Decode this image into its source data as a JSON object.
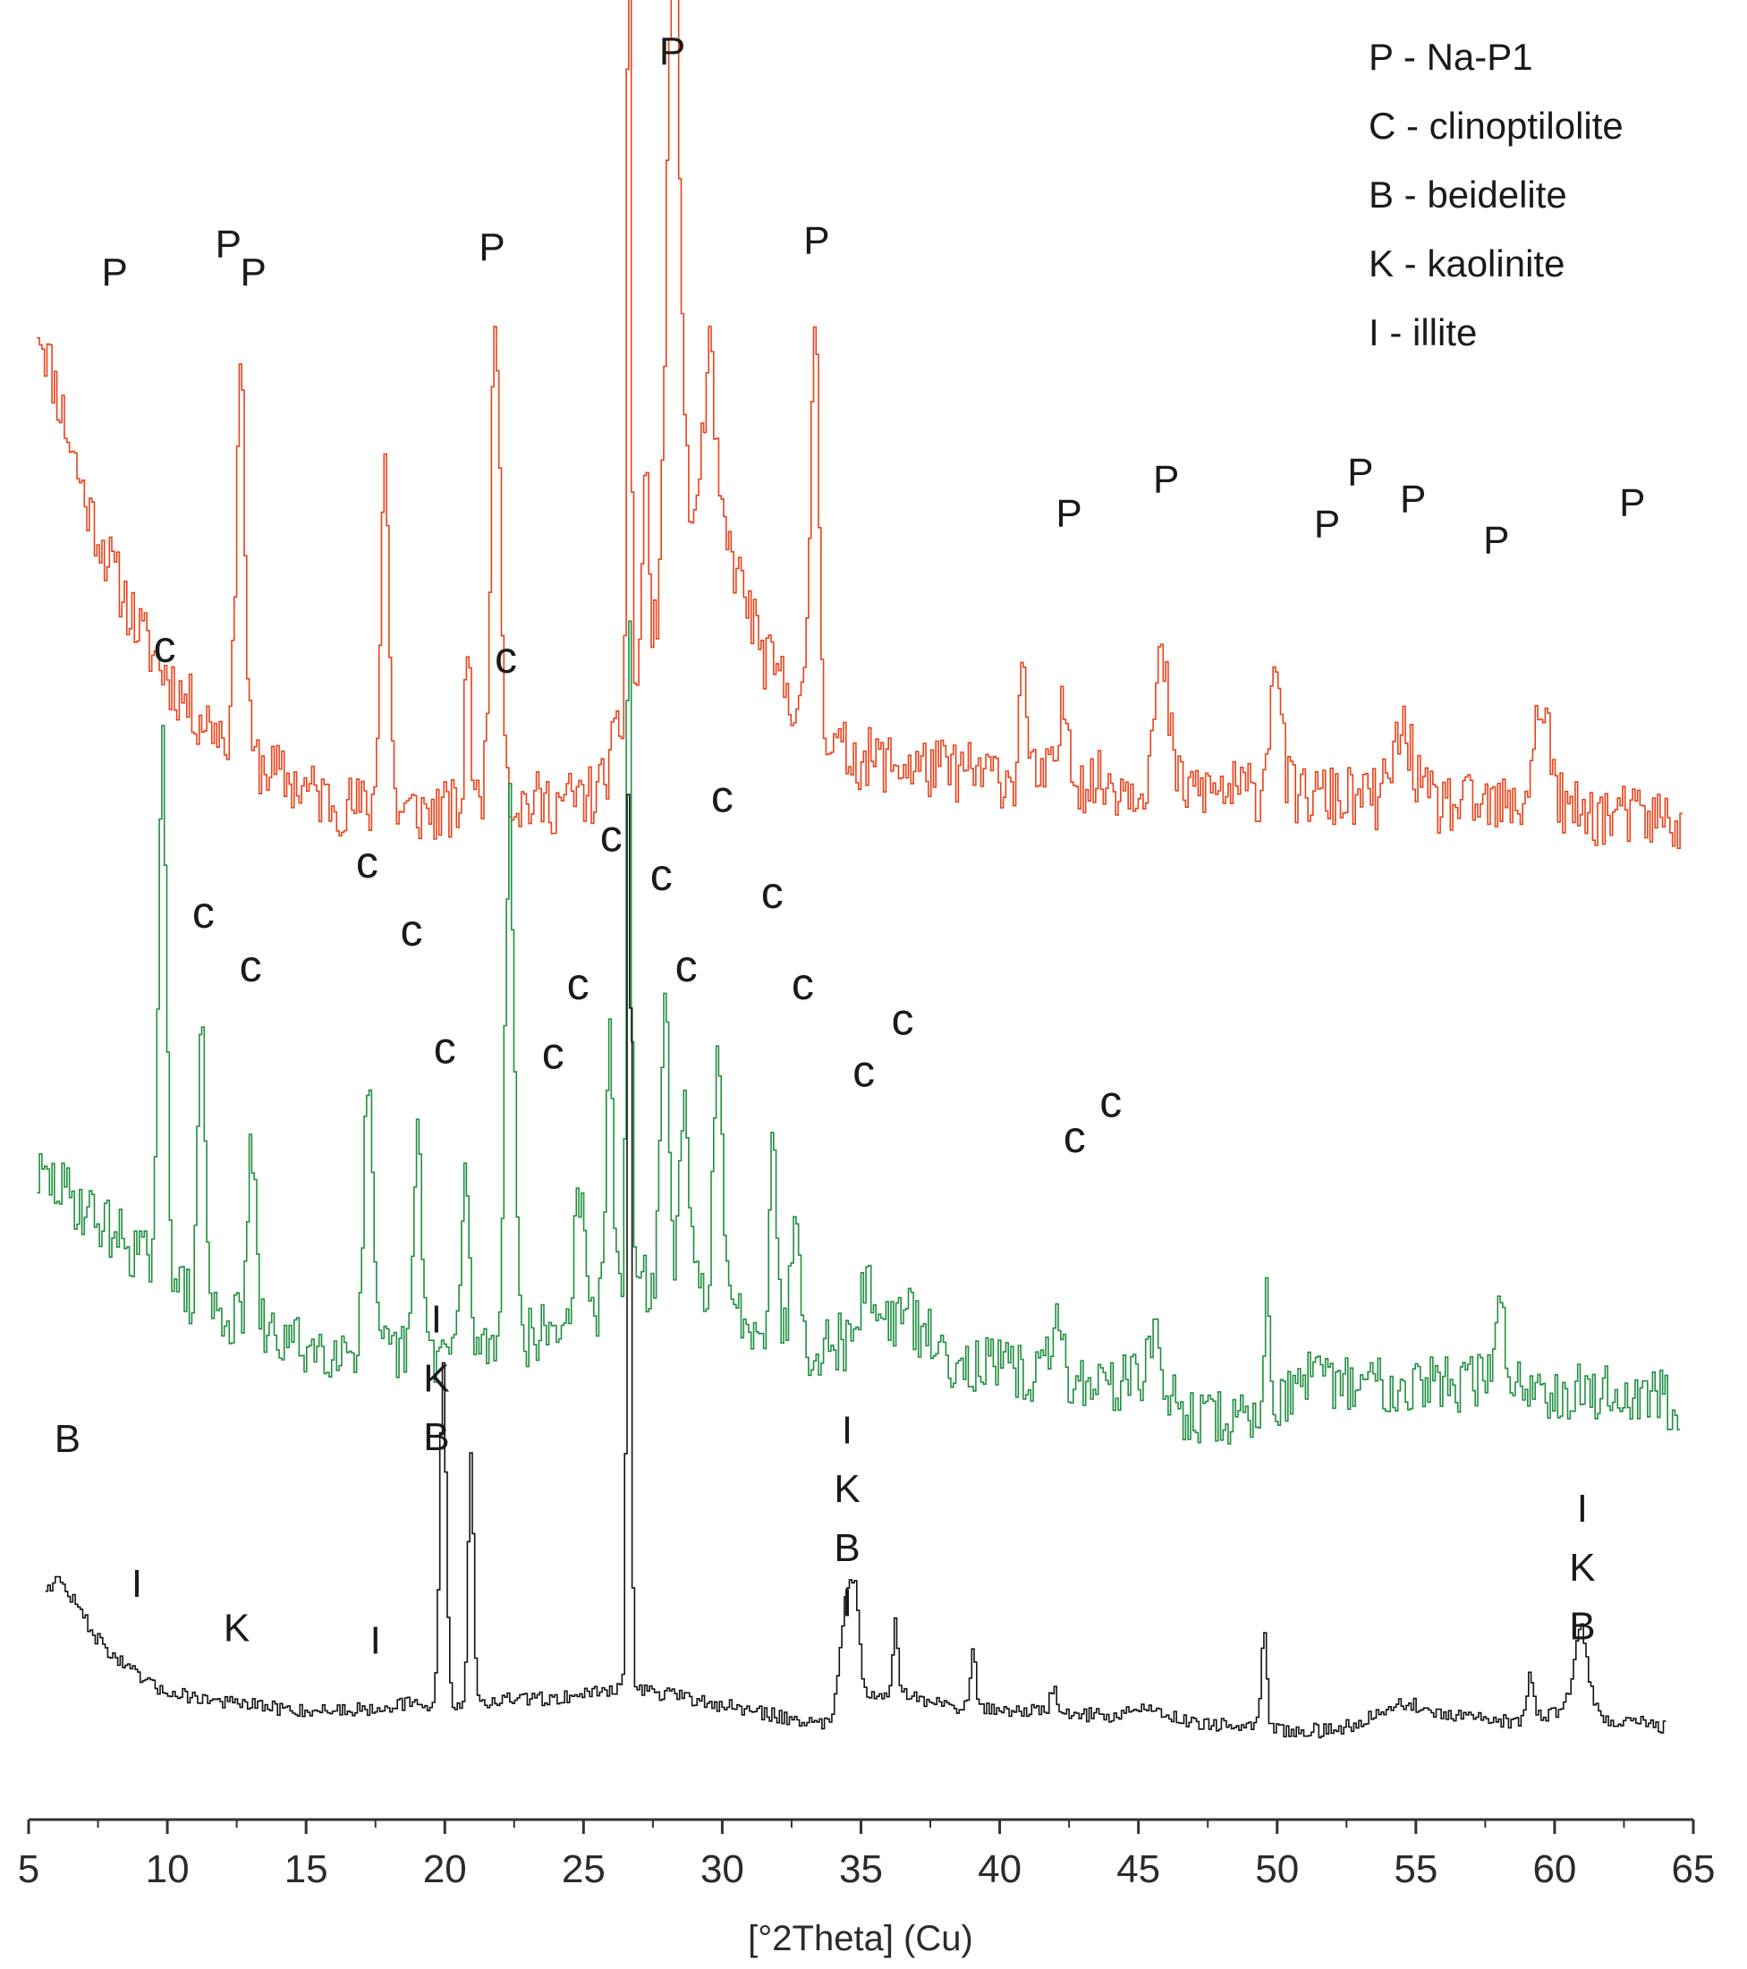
{
  "chart_data": {
    "type": "line",
    "title": "",
    "xlabel": "[°2Theta] (Cu)",
    "ylabel": "",
    "xlim": [
      5,
      65
    ],
    "xticks": [
      "5",
      "10",
      "15",
      "20",
      "25",
      "30",
      "35",
      "40",
      "45",
      "50",
      "55",
      "60",
      "65"
    ],
    "legend": {
      "placement": "top-right",
      "entries": [
        "P - Na-P1",
        "C - clinoptilolite",
        "B - beidelite",
        "K - kaolinite",
        "I - illite"
      ]
    },
    "colors": {
      "top": "#e8421a",
      "middle": "#1f8f3f",
      "bottom": "#111111",
      "axis": "#333333"
    },
    "series": [
      {
        "color": "#e8421a",
        "background": [
          [
            5.3,
            0.84
          ],
          [
            6,
            0.8
          ],
          [
            7,
            0.74
          ],
          [
            8,
            0.7
          ],
          [
            9,
            0.665
          ],
          [
            10,
            0.64
          ],
          [
            11,
            0.62
          ],
          [
            12,
            0.61
          ],
          [
            13,
            0.595
          ],
          [
            14,
            0.585
          ],
          [
            16,
            0.57
          ],
          [
            18,
            0.565
          ],
          [
            20,
            0.565
          ],
          [
            22,
            0.57
          ],
          [
            24,
            0.57
          ],
          [
            25.5,
            0.575
          ],
          [
            26.5,
            0.62
          ],
          [
            27.5,
            0.66
          ],
          [
            28.5,
            0.72
          ],
          [
            29.5,
            0.74
          ],
          [
            30.5,
            0.7
          ],
          [
            31.5,
            0.65
          ],
          [
            33,
            0.62
          ],
          [
            34,
            0.6
          ],
          [
            35,
            0.595
          ],
          [
            37,
            0.59
          ],
          [
            40,
            0.585
          ],
          [
            45,
            0.58
          ],
          [
            50,
            0.575
          ],
          [
            55,
            0.57
          ],
          [
            60,
            0.565
          ],
          [
            64.6,
            0.56
          ]
        ],
        "peaks": [
          [
            12.6,
            0.22,
            0.15
          ],
          [
            17.8,
            0.2,
            0.15
          ],
          [
            21.8,
            0.27,
            0.18
          ],
          [
            26.6,
            0.52,
            0.07
          ],
          [
            28.2,
            0.38,
            0.22
          ],
          [
            29.5,
            0.08,
            0.2
          ],
          [
            33.3,
            0.23,
            0.15
          ],
          [
            20.8,
            0.1,
            0.1
          ],
          [
            27.2,
            0.12,
            0.1
          ],
          [
            40.8,
            0.08,
            0.1
          ],
          [
            45.8,
            0.07,
            0.25
          ],
          [
            49.9,
            0.08,
            0.2
          ],
          [
            59.5,
            0.06,
            0.3
          ],
          [
            54.5,
            0.04,
            0.35
          ],
          [
            42.3,
            0.04,
            0.2
          ]
        ],
        "noise": 0.018,
        "seed": 11
      },
      {
        "color": "#1f8f3f",
        "background": [
          [
            5.3,
            0.36
          ],
          [
            6,
            0.355
          ],
          [
            8,
            0.33
          ],
          [
            9.5,
            0.31
          ],
          [
            11,
            0.29
          ],
          [
            13,
            0.275
          ],
          [
            15,
            0.265
          ],
          [
            17,
            0.265
          ],
          [
            19,
            0.26
          ],
          [
            21,
            0.265
          ],
          [
            23,
            0.27
          ],
          [
            25,
            0.28
          ],
          [
            27,
            0.3
          ],
          [
            29,
            0.3
          ],
          [
            31,
            0.28
          ],
          [
            33,
            0.265
          ],
          [
            35,
            0.27
          ],
          [
            36.5,
            0.285
          ],
          [
            38,
            0.26
          ],
          [
            42,
            0.245
          ],
          [
            45,
            0.245
          ],
          [
            47,
            0.225
          ],
          [
            49,
            0.225
          ],
          [
            51,
            0.245
          ],
          [
            55,
            0.245
          ],
          [
            58,
            0.245
          ],
          [
            61,
            0.24
          ],
          [
            64.5,
            0.235
          ]
        ],
        "peaks": [
          [
            9.8,
            0.3,
            0.14
          ],
          [
            11.2,
            0.17,
            0.12
          ],
          [
            13,
            0.1,
            0.15
          ],
          [
            17.2,
            0.15,
            0.15
          ],
          [
            19.0,
            0.12,
            0.15
          ],
          [
            20.7,
            0.09,
            0.15
          ],
          [
            22.3,
            0.3,
            0.16
          ],
          [
            24.8,
            0.07,
            0.18
          ],
          [
            25.9,
            0.17,
            0.12
          ],
          [
            26.6,
            0.42,
            0.08
          ],
          [
            27.9,
            0.16,
            0.15
          ],
          [
            28.6,
            0.1,
            0.15
          ],
          [
            29.8,
            0.14,
            0.15
          ],
          [
            31.8,
            0.12,
            0.12
          ],
          [
            32.6,
            0.08,
            0.15
          ],
          [
            35.2,
            0.03,
            0.25
          ],
          [
            49.6,
            0.06,
            0.12
          ],
          [
            58.0,
            0.04,
            0.2
          ],
          [
            42.0,
            0.03,
            0.25
          ],
          [
            45.5,
            0.03,
            0.25
          ]
        ],
        "noise": 0.017,
        "seed": 29
      },
      {
        "color": "#111111",
        "background": [
          [
            5.6,
            0.13
          ],
          [
            6,
            0.135
          ],
          [
            6.5,
            0.125
          ],
          [
            7.5,
            0.1
          ],
          [
            8.5,
            0.085
          ],
          [
            9.5,
            0.074
          ],
          [
            10.5,
            0.07
          ],
          [
            12,
            0.066
          ],
          [
            13.5,
            0.063
          ],
          [
            15,
            0.061
          ],
          [
            17,
            0.062
          ],
          [
            18.5,
            0.065
          ],
          [
            19.5,
            0.063
          ],
          [
            20.5,
            0.063
          ],
          [
            22,
            0.067
          ],
          [
            24,
            0.068
          ],
          [
            25.5,
            0.072
          ],
          [
            26.5,
            0.075
          ],
          [
            28,
            0.07
          ],
          [
            30,
            0.064
          ],
          [
            32,
            0.058
          ],
          [
            33.7,
            0.053
          ],
          [
            35,
            0.068
          ],
          [
            36.5,
            0.07
          ],
          [
            38,
            0.064
          ],
          [
            40,
            0.062
          ],
          [
            42,
            0.06
          ],
          [
            44,
            0.058
          ],
          [
            45.3,
            0.063
          ],
          [
            46.5,
            0.056
          ],
          [
            48,
            0.053
          ],
          [
            50,
            0.05
          ],
          [
            52,
            0.05
          ],
          [
            53,
            0.055
          ],
          [
            54,
            0.064
          ],
          [
            55,
            0.064
          ],
          [
            56,
            0.058
          ],
          [
            57.5,
            0.056
          ],
          [
            58.5,
            0.055
          ],
          [
            60,
            0.06
          ],
          [
            61,
            0.062
          ],
          [
            62,
            0.056
          ],
          [
            64,
            0.052
          ]
        ],
        "peaks": [
          [
            19.9,
            0.19,
            0.12
          ],
          [
            20.9,
            0.14,
            0.1
          ],
          [
            26.6,
            0.55,
            0.07
          ],
          [
            34.5,
            0.07,
            0.25
          ],
          [
            34.8,
            0.03,
            0.12
          ],
          [
            36.2,
            0.04,
            0.1
          ],
          [
            39.0,
            0.03,
            0.1
          ],
          [
            41.9,
            0.015,
            0.1
          ],
          [
            49.5,
            0.055,
            0.1
          ],
          [
            59.1,
            0.025,
            0.12
          ],
          [
            60.9,
            0.045,
            0.25
          ]
        ],
        "noise": 0.004,
        "seed": 47
      }
    ],
    "annotations": [
      {
        "text": "P",
        "x": 8.1,
        "y": 0.86,
        "kind": "P"
      },
      {
        "text": "P",
        "x": 13.1,
        "y": 0.86,
        "kind": "P"
      },
      {
        "text": "P",
        "x": 12.2,
        "y": 0.876,
        "kind": "P"
      },
      {
        "text": "P",
        "x": 21.7,
        "y": 0.874,
        "kind": "P"
      },
      {
        "text": "P",
        "x": 28.2,
        "y": 0.984,
        "kind": "P"
      },
      {
        "text": "P",
        "x": 33.4,
        "y": 0.878,
        "kind": "P"
      },
      {
        "text": "P",
        "x": 42.5,
        "y": 0.725,
        "kind": "P"
      },
      {
        "text": "P",
        "x": 46.0,
        "y": 0.744,
        "kind": "P"
      },
      {
        "text": "P",
        "x": 51.8,
        "y": 0.719,
        "kind": "P"
      },
      {
        "text": "P",
        "x": 53.0,
        "y": 0.748,
        "kind": "P"
      },
      {
        "text": "P",
        "x": 54.9,
        "y": 0.733,
        "kind": "P"
      },
      {
        "text": "P",
        "x": 57.9,
        "y": 0.71,
        "kind": "P"
      },
      {
        "text": "P",
        "x": 62.8,
        "y": 0.731,
        "kind": "P"
      },
      {
        "text": "C",
        "x": 9.9,
        "y": 0.649,
        "kind": "C"
      },
      {
        "text": "C",
        "x": 22.2,
        "y": 0.643,
        "kind": "C"
      },
      {
        "text": "C",
        "x": 11.3,
        "y": 0.5,
        "kind": "C"
      },
      {
        "text": "C",
        "x": 13.0,
        "y": 0.47,
        "kind": "C"
      },
      {
        "text": "C",
        "x": 17.2,
        "y": 0.528,
        "kind": "C"
      },
      {
        "text": "C",
        "x": 18.8,
        "y": 0.49,
        "kind": "C"
      },
      {
        "text": "C",
        "x": 20.0,
        "y": 0.424,
        "kind": "C"
      },
      {
        "text": "C",
        "x": 23.9,
        "y": 0.421,
        "kind": "C"
      },
      {
        "text": "C",
        "x": 24.8,
        "y": 0.46,
        "kind": "C"
      },
      {
        "text": "C",
        "x": 26.0,
        "y": 0.543,
        "kind": "C"
      },
      {
        "text": "C",
        "x": 27.8,
        "y": 0.521,
        "kind": "C"
      },
      {
        "text": "C",
        "x": 28.7,
        "y": 0.47,
        "kind": "C"
      },
      {
        "text": "C",
        "x": 30.0,
        "y": 0.565,
        "kind": "C"
      },
      {
        "text": "C",
        "x": 31.8,
        "y": 0.511,
        "kind": "C"
      },
      {
        "text": "C",
        "x": 32.9,
        "y": 0.46,
        "kind": "C"
      },
      {
        "text": "C",
        "x": 35.1,
        "y": 0.411,
        "kind": "C"
      },
      {
        "text": "C",
        "x": 36.5,
        "y": 0.44,
        "kind": "C"
      },
      {
        "text": "C",
        "x": 42.7,
        "y": 0.374,
        "kind": "C"
      },
      {
        "text": "C",
        "x": 44.0,
        "y": 0.394,
        "kind": "C"
      },
      {
        "text": "B",
        "x": 6.4,
        "y": 0.206,
        "kind": "B"
      },
      {
        "text": "I",
        "x": 8.9,
        "y": 0.125,
        "kind": "B"
      },
      {
        "text": "K",
        "x": 12.5,
        "y": 0.1,
        "kind": "B"
      },
      {
        "text": "I",
        "x": 17.5,
        "y": 0.093,
        "kind": "B"
      },
      {
        "text": "I",
        "x": 19.7,
        "y": 0.273,
        "kind": "B"
      },
      {
        "text": "K",
        "x": 19.7,
        "y": 0.24,
        "kind": "B"
      },
      {
        "text": "B",
        "x": 19.7,
        "y": 0.207,
        "kind": "B"
      },
      {
        "text": "I",
        "x": 34.5,
        "y": 0.211,
        "kind": "B"
      },
      {
        "text": "K",
        "x": 34.5,
        "y": 0.178,
        "kind": "B"
      },
      {
        "text": "B",
        "x": 34.5,
        "y": 0.145,
        "kind": "B"
      },
      {
        "text": "I",
        "x": 34.5,
        "y": 0.114,
        "kind": "B"
      },
      {
        "text": "I",
        "x": 61.0,
        "y": 0.167,
        "kind": "B"
      },
      {
        "text": "K",
        "x": 61.0,
        "y": 0.134,
        "kind": "B"
      },
      {
        "text": "B",
        "x": 61.0,
        "y": 0.101,
        "kind": "B"
      }
    ]
  }
}
